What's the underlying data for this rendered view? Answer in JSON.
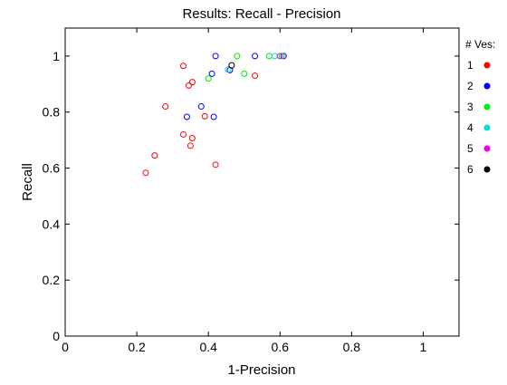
{
  "chart_data": {
    "type": "scatter",
    "title": "Results: Recall - Precision",
    "xlabel": "1-Precision",
    "ylabel": "Recall",
    "xlim": [
      0,
      1.1
    ],
    "ylim": [
      0,
      1.1
    ],
    "xticks": [
      0,
      0.2,
      0.4,
      0.6,
      0.8,
      1
    ],
    "xtick_labels": [
      "0",
      "0.2",
      "0.4",
      "0.6",
      "0.8",
      "1"
    ],
    "yticks": [
      0,
      0.2,
      0.4,
      0.6,
      0.8,
      1
    ],
    "ytick_labels": [
      "0",
      "0.2",
      "0.4",
      "0.6",
      "0.8",
      "1"
    ],
    "grid": false,
    "marker": "open-circle",
    "legend": {
      "title": "# Ves:",
      "placement": "right-outside",
      "marker": "filled-circle",
      "entries": [
        "1",
        "2",
        "3",
        "4",
        "5",
        "6"
      ]
    },
    "series": [
      {
        "name": "1",
        "color": "#ff0000",
        "points": [
          [
            0.33,
            0.965
          ],
          [
            0.345,
            0.895
          ],
          [
            0.355,
            0.907
          ],
          [
            0.53,
            0.93
          ],
          [
            0.28,
            0.82
          ],
          [
            0.39,
            0.785
          ],
          [
            0.33,
            0.72
          ],
          [
            0.355,
            0.707
          ],
          [
            0.35,
            0.68
          ],
          [
            0.25,
            0.645
          ],
          [
            0.42,
            0.612
          ],
          [
            0.225,
            0.583
          ]
        ]
      },
      {
        "name": "2",
        "color": "#0000ff",
        "points": [
          [
            0.42,
            1.0
          ],
          [
            0.53,
            1.0
          ],
          [
            0.61,
            1.0
          ],
          [
            0.41,
            0.937
          ],
          [
            0.38,
            0.82
          ],
          [
            0.34,
            0.783
          ],
          [
            0.415,
            0.783
          ],
          [
            0.46,
            0.95
          ]
        ]
      },
      {
        "name": "3",
        "color": "#00ee00",
        "points": [
          [
            0.48,
            1.0
          ],
          [
            0.57,
            1.0
          ],
          [
            0.605,
            1.0
          ],
          [
            0.5,
            0.937
          ],
          [
            0.4,
            0.92
          ]
        ]
      },
      {
        "name": "4",
        "color": "#00dddd",
        "points": [
          [
            0.585,
            1.0
          ],
          [
            0.455,
            0.952
          ]
        ]
      },
      {
        "name": "5",
        "color": "#ee00ee",
        "points": [
          [
            0.6,
            1.0
          ]
        ]
      },
      {
        "name": "6",
        "color": "#000000",
        "points": [
          [
            0.465,
            0.967
          ]
        ]
      }
    ]
  }
}
